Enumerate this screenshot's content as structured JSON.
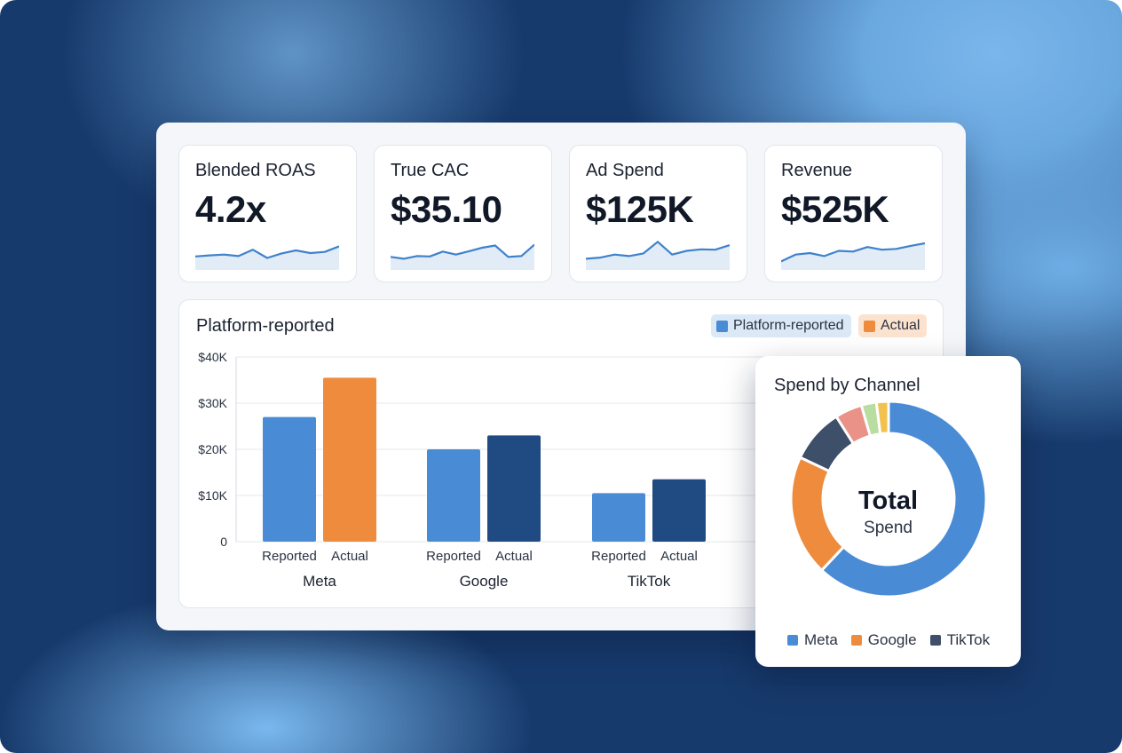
{
  "kpis": [
    {
      "label": "Blended ROAS",
      "value": "4.2x",
      "trend": [
        3.1,
        3.4,
        3.6,
        3.2,
        4.9,
        2.7,
        3.9,
        4.7,
        4.0,
        4.3,
        5.8
      ]
    },
    {
      "label": "True CAC",
      "value": "$35.10",
      "trend": [
        3.0,
        2.5,
        3.2,
        3.1,
        4.4,
        3.6,
        4.5,
        5.4,
        6.0,
        3.0,
        3.2,
        6.2
      ]
    },
    {
      "label": "Ad Spend",
      "value": "$125K",
      "trend": [
        2.5,
        2.8,
        3.6,
        3.2,
        3.9,
        7.0,
        3.6,
        4.6,
        5.0,
        4.9,
        6.1
      ]
    },
    {
      "label": "Revenue",
      "value": "$525K",
      "trend": [
        1.8,
        3.6,
        4.0,
        3.2,
        4.6,
        4.4,
        5.6,
        4.9,
        5.1,
        5.9,
        6.6
      ]
    }
  ],
  "bar_panel": {
    "title": "Platform-reported",
    "legend": {
      "reported": "Platform-reported",
      "actual": "Actual"
    }
  },
  "donut_panel": {
    "title": "Spend by Channel",
    "center_main": "Total",
    "center_sub": "Spend",
    "legend": [
      {
        "label": "Meta",
        "color": "#4a8bd6"
      },
      {
        "label": "Google",
        "color": "#ef8b3c"
      },
      {
        "label": "TikTok",
        "color": "#3d4f69"
      }
    ]
  },
  "colors": {
    "reported": "#4a8bd6",
    "actual_meta": "#ef8b3c",
    "actual_other": "#1f4a82",
    "spark": "#3f82cc"
  },
  "chart_data": [
    {
      "type": "bar",
      "title": "Platform-reported",
      "groups": [
        "Meta",
        "Google",
        "TikTok"
      ],
      "subcategories": [
        "Reported",
        "Actual"
      ],
      "series": [
        {
          "name": "Platform-reported",
          "values": [
            27000,
            20000,
            10500
          ]
        },
        {
          "name": "Actual",
          "values": [
            35500,
            23000,
            13500
          ]
        }
      ],
      "yticks": [
        "0",
        "$10K",
        "$20K",
        "$30K",
        "$40K"
      ],
      "ylim": [
        0,
        40000
      ],
      "grid": true,
      "legend_position": "top-right"
    },
    {
      "type": "pie",
      "title": "Spend by Channel",
      "donut": true,
      "slices": [
        {
          "label": "Meta",
          "value": 62,
          "color": "#4a8bd6"
        },
        {
          "label": "Google",
          "value": 20,
          "color": "#ef8b3c"
        },
        {
          "label": "TikTok",
          "value": 9,
          "color": "#3d4f69"
        },
        {
          "label": "",
          "value": 4.5,
          "color": "#ea9188"
        },
        {
          "label": "",
          "value": 2.5,
          "color": "#b9dca0"
        },
        {
          "label": "",
          "value": 2,
          "color": "#f2c24f"
        }
      ]
    }
  ]
}
